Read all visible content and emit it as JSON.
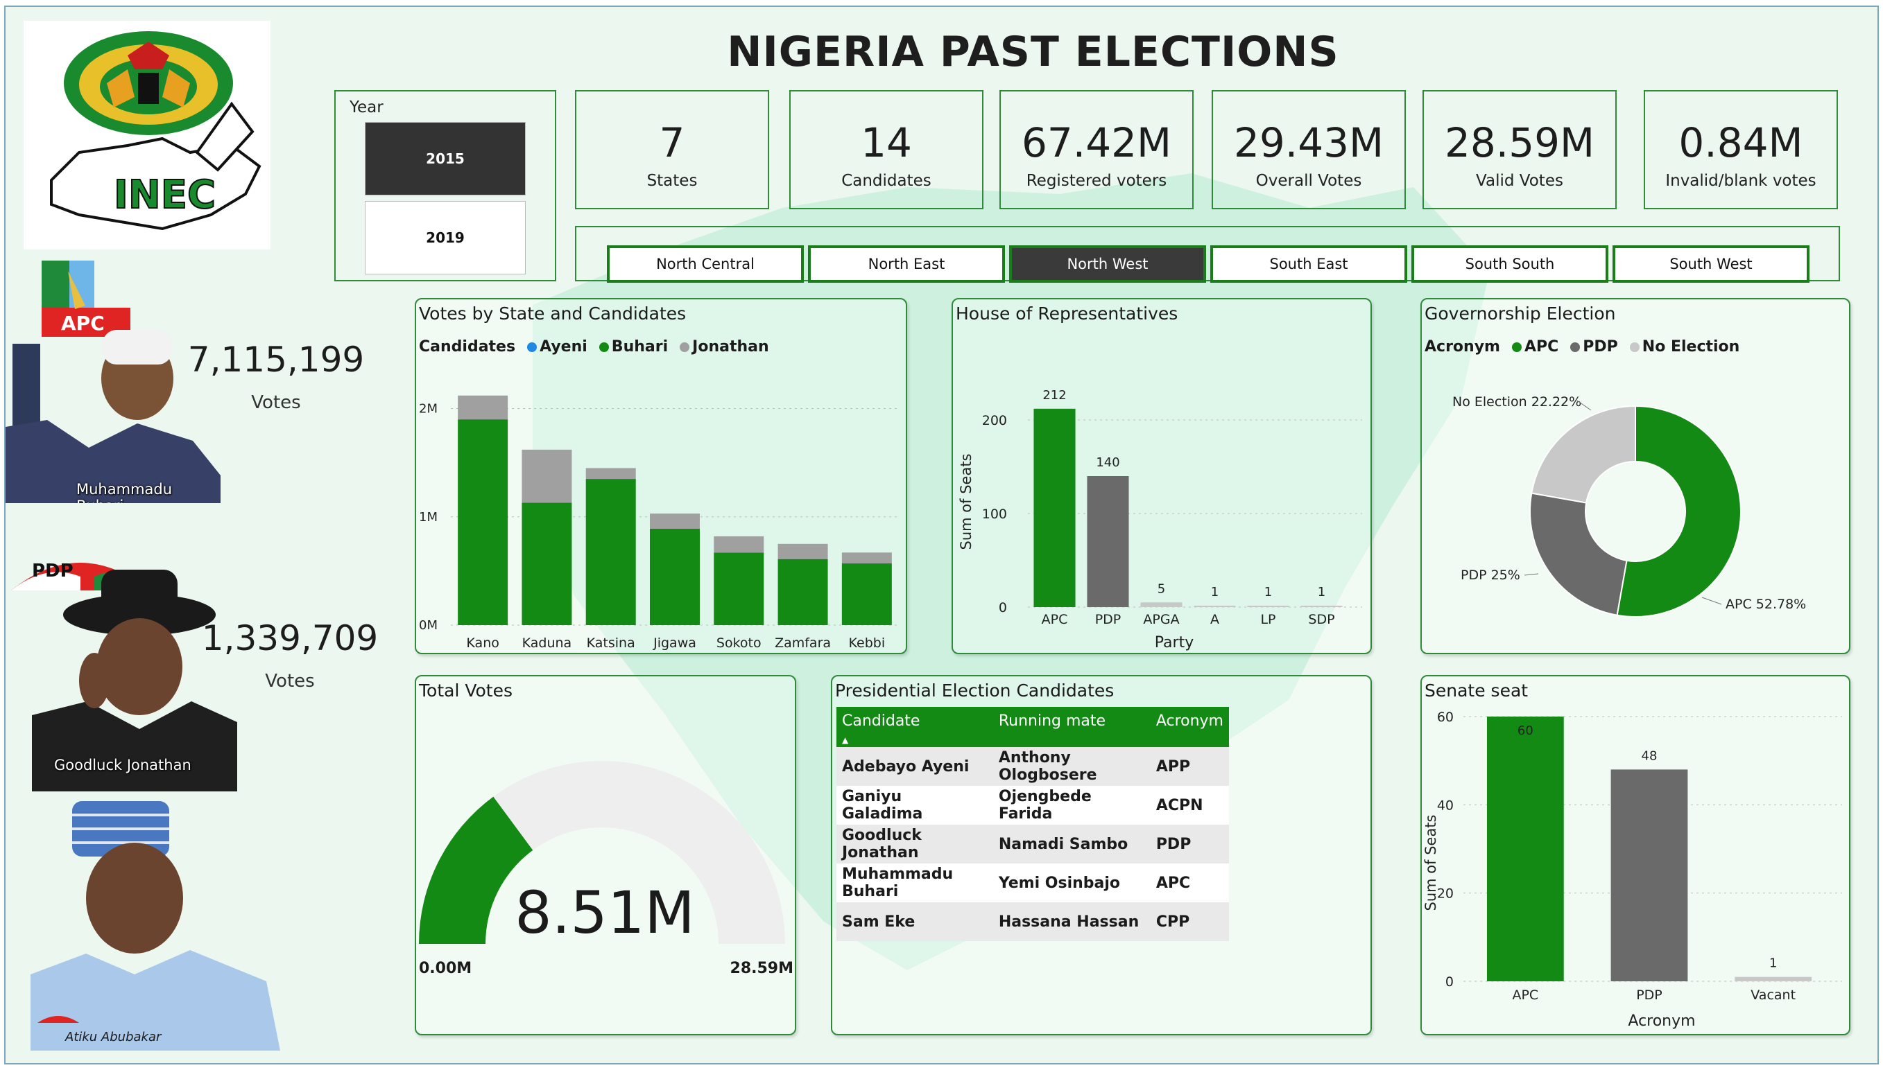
{
  "title": "NIGERIA PAST ELECTIONS",
  "logo": {
    "text": "INEC"
  },
  "year_slicer": {
    "label": "Year",
    "options": [
      "2015",
      "2019"
    ],
    "selected": "2015"
  },
  "kpis": [
    {
      "value": "7",
      "label": "States"
    },
    {
      "value": "14",
      "label": "Candidates"
    },
    {
      "value": "67.42M",
      "label": "Registered voters"
    },
    {
      "value": "29.43M",
      "label": "Overall Votes"
    },
    {
      "value": "28.59M",
      "label": "Valid Votes"
    },
    {
      "value": "0.84M",
      "label": "Invalid/blank votes"
    }
  ],
  "regions": {
    "items": [
      "North Central",
      "North East",
      "North West",
      "South East",
      "South South",
      "South West"
    ],
    "selected": "North West"
  },
  "candidates_side": [
    {
      "name": "Muhammadu Buhari",
      "party_logo": "APC",
      "votes": "7,115,199",
      "votes_label": "Votes"
    },
    {
      "name": "Goodluck Jonathan",
      "party_logo": "PDP",
      "votes": "1,339,709",
      "votes_label": "Votes"
    },
    {
      "name": "Atiku Abubakar",
      "party_logo": "PDP"
    }
  ],
  "colors": {
    "green": "#138a13",
    "grey": "#a0a0a0",
    "dark_grey": "#6a6a6a",
    "light_grey": "#c8c8c8",
    "blue": "#1e88e5"
  },
  "votes_by_state": {
    "title": "Votes by State and Candidates",
    "legend_title": "Candidates",
    "legend": [
      "Ayeni",
      "Buhari",
      "Jonathan"
    ]
  },
  "house": {
    "title": "House of Representatives",
    "ylabel": "Sum of Seats",
    "xlabel": "Party"
  },
  "governorship": {
    "title": "Governorship Election",
    "legend_title": "Acronym",
    "legend": [
      "APC",
      "PDP",
      "No Election"
    ],
    "labels": [
      "APC 52.78%",
      "PDP 25%",
      "No Election 22.22%"
    ]
  },
  "total_votes": {
    "title": "Total Votes",
    "value_label": "8.51M",
    "min_label": "0.00M",
    "max_label": "28.59M"
  },
  "presidential": {
    "title": "Presidential Election Candidates",
    "columns": [
      "Candidate",
      "Running mate",
      "Acronym"
    ],
    "sort_icon": "sort-ascending-icon",
    "rows": [
      [
        "Adebayo Ayeni",
        "Anthony Ologbosere",
        "APP"
      ],
      [
        "Ganiyu Galadima",
        "Ojengbede Farida",
        "ACPN"
      ],
      [
        "Goodluck Jonathan",
        "Namadi Sambo",
        "PDP"
      ],
      [
        "Muhammadu Buhari",
        "Yemi Osinbajo",
        "APC"
      ],
      [
        "Sam Eke",
        "Hassana Hassan",
        "CPP"
      ]
    ]
  },
  "senate": {
    "title": "Senate seat",
    "ylabel": "Sum of Seats",
    "xlabel": "Acronym"
  },
  "chart_data": [
    {
      "type": "bar",
      "title": "Votes by State and Candidates",
      "stacked": true,
      "categories": [
        "Kano",
        "Kaduna",
        "Katsina",
        "Jigawa",
        "Sokoto",
        "Zamfara",
        "Kebbi"
      ],
      "series": [
        {
          "name": "Ayeni",
          "values": [
            0,
            0,
            0,
            0,
            0,
            0,
            0
          ]
        },
        {
          "name": "Buhari",
          "values": [
            1900000,
            1130000,
            1350000,
            890000,
            670000,
            610000,
            570000
          ]
        },
        {
          "name": "Jonathan",
          "values": [
            220000,
            490000,
            100000,
            140000,
            150000,
            140000,
            100000
          ]
        }
      ],
      "yticks": [
        "0M",
        "1M",
        "2M"
      ],
      "ylim": [
        0,
        2400000
      ],
      "grid": true
    },
    {
      "type": "bar",
      "title": "House of Representatives",
      "categories": [
        "APC",
        "PDP",
        "APGA",
        "A",
        "LP",
        "SDP"
      ],
      "values": [
        212,
        140,
        5,
        1,
        1,
        1
      ],
      "xlabel": "Party",
      "ylabel": "Sum of Seats",
      "yticks": [
        0,
        100,
        200
      ],
      "ylim": [
        0,
        240
      ],
      "grid": true
    },
    {
      "type": "pie",
      "title": "Governorship Election",
      "donut": true,
      "categories": [
        "APC",
        "PDP",
        "No Election"
      ],
      "values": [
        52.78,
        25,
        22.22
      ]
    },
    {
      "type": "gauge",
      "title": "Total Votes",
      "value": 8.51,
      "min": 0,
      "max": 28.59,
      "unit": "M"
    },
    {
      "type": "bar",
      "title": "Senate seat",
      "categories": [
        "APC",
        "PDP",
        "Vacant"
      ],
      "values": [
        60,
        48,
        1
      ],
      "xlabel": "Acronym",
      "ylabel": "Sum of Seats",
      "yticks": [
        0,
        20,
        40,
        60
      ],
      "ylim": [
        0,
        60
      ],
      "grid": true
    }
  ]
}
